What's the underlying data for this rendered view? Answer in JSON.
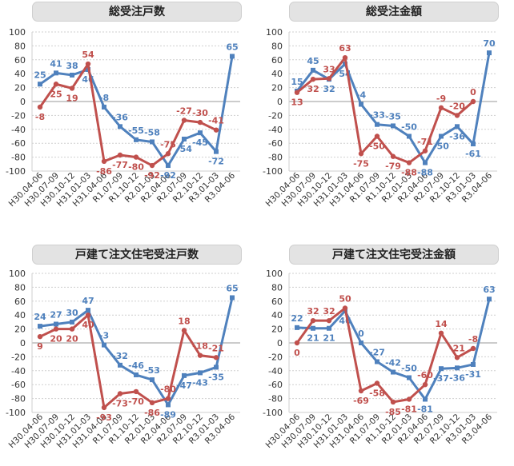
{
  "colors": {
    "blue": "#4f81bd",
    "red": "#c0504d",
    "grid": "#cfcfcf",
    "zero": "#999999",
    "axis_text": "#333333"
  },
  "chart_data": [
    {
      "type": "line",
      "title": "総受注戸数",
      "categories": [
        "H30.04-06",
        "H30.07-09",
        "H30.10-12",
        "H31.01-03",
        "H31.04-06",
        "R1.07-09",
        "R1.10-12",
        "R2.01-03",
        "R2.04-06",
        "R2.07-09",
        "R2.10-12",
        "R3.01-03",
        "R3.04-06"
      ],
      "ylim": [
        -100,
        100
      ],
      "yticks": [
        "100",
        "80",
        "60",
        "40",
        "20",
        "0",
        "-20",
        "-40",
        "-60",
        "-80",
        "-100"
      ],
      "grid": true,
      "series": [
        {
          "color": "blue",
          "values": [
            25,
            41,
            38,
            46,
            -8,
            -36,
            -55,
            -58,
            -92,
            -54,
            -45,
            -72,
            65
          ],
          "labels": [
            "25",
            "41",
            "38",
            "46",
            "-8",
            "-36",
            "-55",
            "-58",
            "-92",
            "-54",
            "-45",
            "-72",
            "65"
          ]
        },
        {
          "color": "red",
          "values": [
            -8,
            25,
            19,
            54,
            -86,
            -77,
            -80,
            -92,
            -75,
            -27,
            -30,
            -41,
            null
          ],
          "labels": [
            "-8",
            "25",
            "19",
            "54",
            "-86",
            "-77",
            "-80",
            "-92",
            "-75",
            "-27",
            "-30",
            "-41",
            ""
          ]
        }
      ]
    },
    {
      "type": "line",
      "title": "総受注金額",
      "categories": [
        "H30.04-06",
        "H30.07-09",
        "H30.10-12",
        "H31.01-03",
        "H31.04-06",
        "R1.07-09",
        "R1.10-12",
        "R2.01-03",
        "R2.04-06",
        "R2.07-09",
        "R2.10-12",
        "R3.01-03",
        "R3.04-06"
      ],
      "ylim": [
        -100,
        100
      ],
      "yticks": [
        "100",
        "80",
        "60",
        "40",
        "20",
        "0",
        "-20",
        "-40",
        "-60",
        "-80",
        "-100"
      ],
      "grid": true,
      "series": [
        {
          "color": "blue",
          "values": [
            15,
            45,
            32,
            54,
            -4,
            -33,
            -35,
            -50,
            -88,
            -50,
            -36,
            -61,
            70
          ],
          "labels": [
            "15",
            "45",
            "32",
            "54",
            "-4",
            "-33",
            "-35",
            "-50",
            "-88",
            "-50",
            "-36",
            "-61",
            "70"
          ]
        },
        {
          "color": "red",
          "values": [
            13,
            32,
            33,
            63,
            -75,
            -50,
            -79,
            -88,
            -71,
            -9,
            -20,
            0,
            null
          ],
          "labels": [
            "13",
            "32",
            "33",
            "63",
            "-75",
            "-50",
            "-79",
            "-88",
            "-71",
            "-9",
            "-20",
            "0",
            ""
          ]
        }
      ]
    },
    {
      "type": "line",
      "title": "戸建て注文住宅受注戸数",
      "categories": [
        "H30.04-06",
        "H30.07-09",
        "H30.10-12",
        "H31.01-03",
        "H31.04-06",
        "R1.07-09",
        "R1.10-12",
        "R2.01-03",
        "R2.04-06",
        "R2.07-09",
        "R2.10-12",
        "R3.01-03",
        "R3.04-06"
      ],
      "ylim": [
        -100,
        100
      ],
      "yticks": [
        "100",
        "80",
        "60",
        "40",
        "20",
        "0",
        "-20",
        "-40",
        "-60",
        "-80",
        "-100"
      ],
      "grid": true,
      "series": [
        {
          "color": "blue",
          "values": [
            24,
            27,
            30,
            47,
            -3,
            -32,
            -46,
            -53,
            -89,
            -47,
            -43,
            -35,
            65
          ],
          "labels": [
            "24",
            "27",
            "30",
            "47",
            "-3",
            "-32",
            "-46",
            "-53",
            "-89",
            "-47",
            "-43",
            "-35",
            "65"
          ]
        },
        {
          "color": "red",
          "values": [
            9,
            20,
            20,
            40,
            -93,
            -73,
            -70,
            -86,
            -80,
            18,
            -18,
            -21,
            null
          ],
          "labels": [
            "9",
            "20",
            "20",
            "40",
            "-93",
            "-73",
            "-70",
            "-86",
            "-80",
            "18",
            "-18",
            "-21",
            ""
          ]
        }
      ]
    },
    {
      "type": "line",
      "title": "戸建て注文住宅受注金額",
      "categories": [
        "H30.04-06",
        "H30.07-09",
        "H30.10-12",
        "H31.01-03",
        "H31.04-06",
        "R1.07-09",
        "R1.10-12",
        "R2.01-03",
        "R2.04-06",
        "R2.07-09",
        "R2.10-12",
        "R3.01-03",
        "R3.04-06"
      ],
      "ylim": [
        -100,
        100
      ],
      "yticks": [
        "100",
        "80",
        "60",
        "40",
        "20",
        "0",
        "-20",
        "-40",
        "-60",
        "-80",
        "-100"
      ],
      "grid": true,
      "series": [
        {
          "color": "blue",
          "values": [
            22,
            21,
            21,
            46,
            0,
            -27,
            -42,
            -50,
            -81,
            -37,
            -36,
            -31,
            63
          ],
          "labels": [
            "22",
            "21",
            "21",
            "46",
            "0",
            "-27",
            "-42",
            "-50",
            "-81",
            "-37",
            "-36",
            "-31",
            "63"
          ]
        },
        {
          "color": "red",
          "values": [
            0,
            32,
            32,
            50,
            -69,
            -58,
            -85,
            -81,
            -60,
            14,
            -21,
            -8,
            null
          ],
          "labels": [
            "0",
            "32",
            "32",
            "50",
            "-69",
            "-58",
            "-85",
            "-81",
            "-60",
            "14",
            "-21",
            "-8",
            ""
          ]
        }
      ]
    }
  ]
}
